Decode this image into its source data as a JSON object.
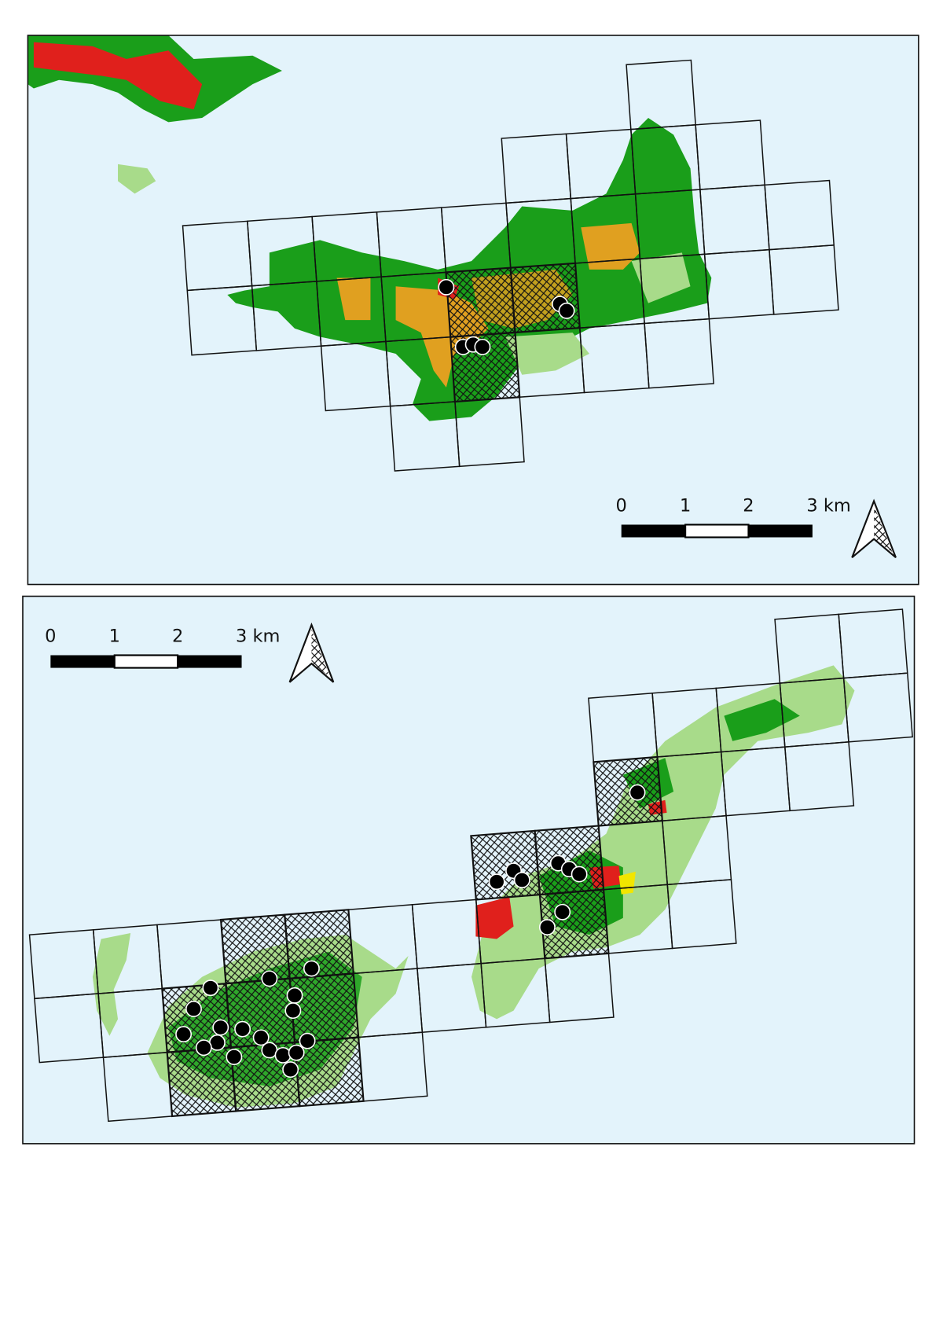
{
  "maps": [
    {
      "scale_labels": [
        "0",
        "1",
        "2",
        "3 km"
      ]
    },
    {
      "scale_labels": [
        "0",
        "1",
        "2",
        "3 km"
      ]
    }
  ]
}
